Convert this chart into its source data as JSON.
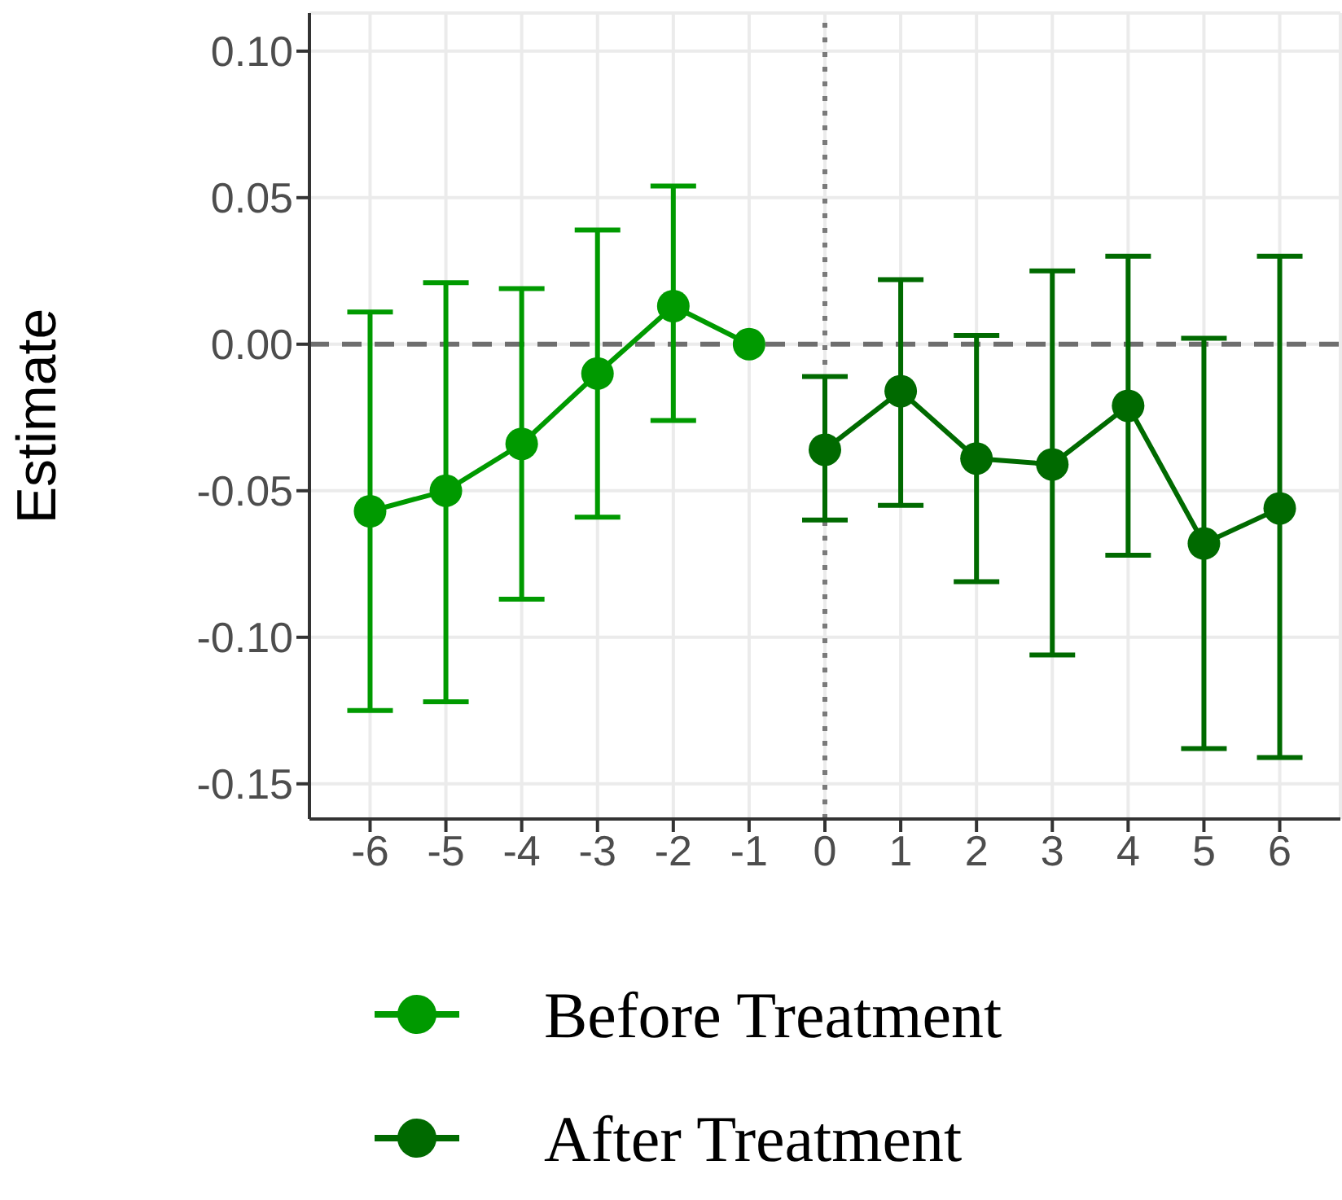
{
  "chart_data": {
    "type": "line",
    "ylabel": "Estimate",
    "xlim": [
      -6.8,
      6.8
    ],
    "xticks": [
      -6,
      -5,
      -4,
      -3,
      -2,
      -1,
      0,
      1,
      2,
      3,
      4,
      5,
      6
    ],
    "ylim": [
      -0.162,
      0.113
    ],
    "yticks": [
      {
        "value": -0.15,
        "label": "-0.15"
      },
      {
        "value": -0.1,
        "label": "-0.10"
      },
      {
        "value": -0.05,
        "label": "-0.05"
      },
      {
        "value": 0,
        "label": "0.00"
      },
      {
        "value": 0.05,
        "label": "0.05"
      },
      {
        "value": 0.1,
        "label": "0.10"
      }
    ],
    "grid": true,
    "legend": "bottom",
    "marker": "circle",
    "line_style": "solid",
    "series": [
      {
        "name": "Before Treatment",
        "color": "#009a00",
        "x": [
          -6,
          -5,
          -4,
          -3,
          -2,
          -1
        ],
        "values": [
          -0.057,
          -0.05,
          -0.034,
          -0.01,
          0.013,
          0
        ],
        "errors": [
          [
            -0.125,
            0.011
          ],
          [
            -0.122,
            0.021
          ],
          [
            -0.087,
            0.019
          ],
          [
            -0.059,
            0.039
          ],
          [
            -0.026,
            0.054
          ],
          null
        ]
      },
      {
        "name": "After Treatment",
        "color": "#006a00",
        "x": [
          0,
          1,
          2,
          3,
          4,
          5,
          6
        ],
        "values": [
          -0.036,
          -0.016,
          -0.039,
          -0.041,
          -0.021,
          -0.068,
          -0.056
        ],
        "errors": [
          [
            -0.06,
            -0.011
          ],
          [
            -0.055,
            0.022
          ],
          [
            -0.081,
            0.003
          ],
          [
            -0.106,
            0.025
          ],
          [
            -0.072,
            0.03
          ],
          [
            -0.138,
            0.002
          ],
          [
            -0.141,
            0.03
          ]
        ]
      }
    ],
    "ref_lines": [
      {
        "axis": "y",
        "value": 0,
        "color": "#6e6e6e",
        "line_style": "dashed"
      },
      {
        "axis": "x",
        "value": 0,
        "color": "#7a7a7a",
        "line_style": "dotted"
      }
    ]
  }
}
